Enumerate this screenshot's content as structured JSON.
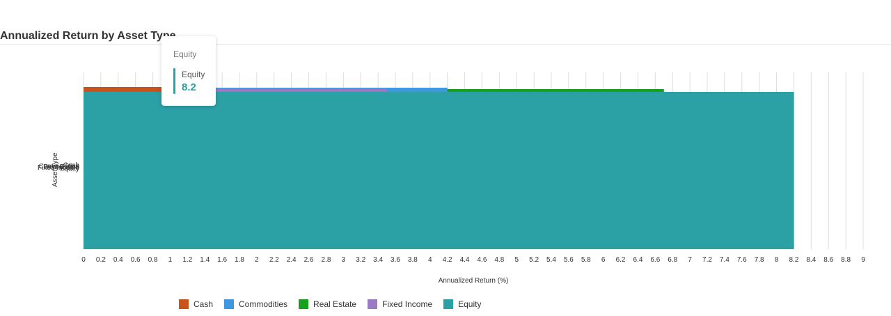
{
  "page": {
    "title": "Annualized Return by Asset Type"
  },
  "tooltip": {
    "title": "Equity",
    "series": "Equity",
    "value": "8.2",
    "color": "#2ba0a5"
  },
  "chart_data": {
    "type": "bar",
    "orientation": "horizontal",
    "title": "Annualized Return by Asset Type",
    "xlabel": "Annualized Return (%)",
    "ylabel": "Asset Type",
    "xlim": [
      0,
      9
    ],
    "x_ticks": [
      "0",
      "0.2",
      "0.4",
      "0.6",
      "0.8",
      "1",
      "1.2",
      "1.4",
      "1.6",
      "1.8",
      "2",
      "2.2",
      "2.4",
      "2.6",
      "2.8",
      "3",
      "3.2",
      "3.4",
      "3.6",
      "3.8",
      "4",
      "4.2",
      "4.4",
      "4.6",
      "4.8",
      "5",
      "5.2",
      "5.4",
      "5.6",
      "5.8",
      "6",
      "6.2",
      "6.4",
      "6.6",
      "6.8",
      "7",
      "7.2",
      "7.4",
      "7.6",
      "7.8",
      "8",
      "8.2",
      "8.4",
      "8.6",
      "8.8",
      "9"
    ],
    "category_labels": [
      "Cash",
      "Commodities",
      "Real Estate",
      "Fixed Income",
      "Equity"
    ],
    "grid": "vertical",
    "legend_position": "bottom",
    "series": [
      {
        "name": "Cash",
        "color": "#c8531c",
        "value": 1.0
      },
      {
        "name": "Commodities",
        "color": "#3e97df",
        "value": 4.2
      },
      {
        "name": "Real Estate",
        "color": "#17a01e",
        "value": 6.7
      },
      {
        "name": "Fixed Income",
        "color": "#9b79c3",
        "value": 3.5
      },
      {
        "name": "Equity",
        "color": "#2ba0a5",
        "value": 8.2
      }
    ]
  }
}
